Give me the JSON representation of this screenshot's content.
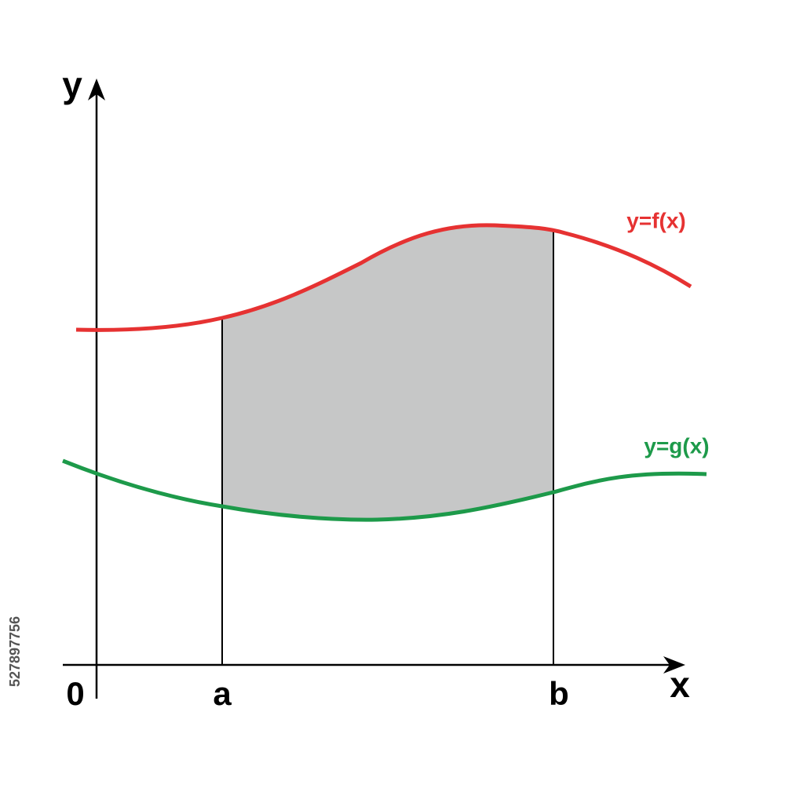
{
  "axes": {
    "y_label": "y",
    "x_label": "x",
    "origin": "0"
  },
  "bounds": {
    "a": "a",
    "b": "b"
  },
  "curves": [
    {
      "label": "y=f(x)",
      "color": "#e63232"
    },
    {
      "label": "y=g(x)",
      "color": "#1d9a4a"
    }
  ],
  "watermark": "527897756"
}
